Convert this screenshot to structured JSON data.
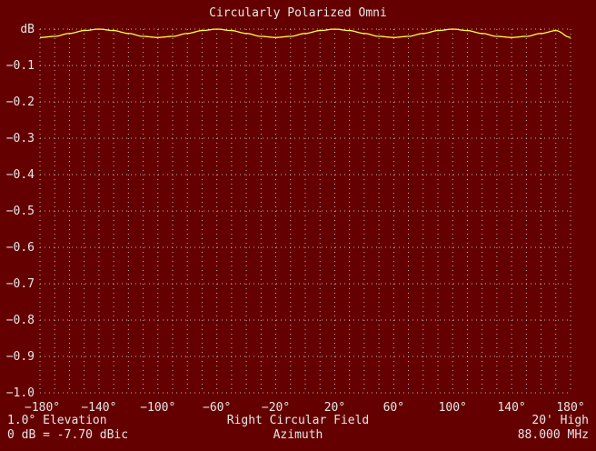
{
  "chart_data": {
    "type": "line",
    "title": "Circularly Polarized Omni",
    "ylabel": "dB",
    "xlabel": "Azimuth",
    "xlim": [
      -180,
      180
    ],
    "ylim": [
      -1.0,
      0
    ],
    "grid": true,
    "x_ticks": [
      -180,
      -140,
      -100,
      -60,
      -20,
      20,
      60,
      100,
      140,
      180
    ],
    "x_tick_labels": [
      "−180°",
      "−140°",
      "−100°",
      "−60°",
      "−20°",
      "20°",
      "60°",
      "100°",
      "140°",
      "180°"
    ],
    "y_ticks": [
      0,
      -0.1,
      -0.2,
      -0.3,
      -0.4,
      -0.5,
      -0.6,
      -0.7,
      -0.8,
      -0.9,
      -1.0
    ],
    "y_tick_labels": [
      "dB",
      "−0.1",
      "−0.2",
      "−0.3",
      "−0.4",
      "−0.5",
      "−0.6",
      "−0.7",
      "−0.8",
      "−0.9",
      "−1.0"
    ],
    "series": [
      {
        "color": "#ffff40",
        "x": [
          -180,
          -170,
          -160,
          -150,
          -140,
          -130,
          -120,
          -110,
          -100,
          -90,
          -80,
          -70,
          -60,
          -50,
          -40,
          -30,
          -20,
          -10,
          0,
          10,
          20,
          30,
          40,
          50,
          60,
          70,
          80,
          90,
          100,
          110,
          120,
          130,
          140,
          150,
          160,
          170,
          180
        ],
        "y": [
          -0.023,
          -0.02,
          -0.012,
          -0.004,
          0,
          -0.004,
          -0.012,
          -0.02,
          -0.023,
          -0.02,
          -0.012,
          -0.004,
          0,
          -0.004,
          -0.012,
          -0.02,
          -0.023,
          -0.02,
          -0.012,
          -0.004,
          0,
          -0.004,
          -0.012,
          -0.02,
          -0.023,
          -0.02,
          -0.012,
          -0.004,
          0,
          -0.004,
          -0.012,
          -0.02,
          -0.023,
          -0.02,
          -0.012,
          -0.004,
          -0.023
        ]
      }
    ]
  },
  "footer": {
    "elevation": "1.0° Elevation",
    "field": "Right Circular Field",
    "height": "20' High",
    "reference": "0 dB = -7.70 dBic",
    "frequency": "88.000 MHz"
  },
  "colors": {
    "background": "#650000",
    "grid": "#b8b8b8",
    "trace": "#ffff40",
    "text": "#e6e6e6"
  }
}
